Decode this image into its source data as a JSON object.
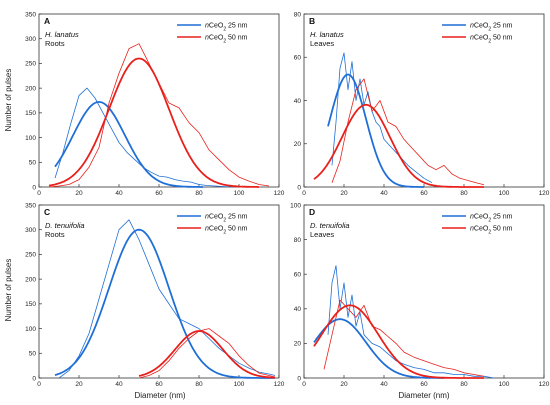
{
  "figure": {
    "ylabel": "Number of pulses",
    "xlabel": "Diameter (nm)"
  },
  "colors": {
    "blue": "#1f6fd6",
    "red": "#e8201c",
    "axis": "#333333"
  },
  "chart_data": [
    {
      "type": "line",
      "panel": "A",
      "species": "H. lanatus",
      "tissue": "Roots",
      "xlim": [
        0,
        120
      ],
      "ylim": [
        0,
        350
      ],
      "xticks": [
        0,
        20,
        40,
        60,
        80,
        100,
        120
      ],
      "yticks": [
        0,
        50,
        100,
        150,
        200,
        250,
        300,
        350
      ],
      "legend_position": "top-right",
      "series": [
        {
          "name": "nCeO2 25 nm",
          "color": "#1f6fd6",
          "histogram": {
            "x": [
              8,
              12,
              16,
              20,
              24,
              28,
              32,
              36,
              40,
              44,
              48,
              52,
              56,
              60,
              64,
              68,
              72,
              76,
              80,
              84,
              88,
              92,
              96
            ],
            "y": [
              18,
              70,
              130,
              185,
              200,
              180,
              150,
              120,
              90,
              70,
              55,
              40,
              30,
              22,
              20,
              15,
              12,
              10,
              5,
              3,
              2,
              1,
              0
            ]
          },
          "fit": {
            "mu": 30,
            "sigma": 13,
            "peak": 172,
            "range": [
              8,
              82
            ]
          }
        },
        {
          "name": "nCeO2 50 nm",
          "color": "#e8201c",
          "histogram": {
            "x": [
              5,
              10,
              15,
              20,
              25,
              30,
              35,
              40,
              45,
              50,
              55,
              60,
              65,
              70,
              75,
              80,
              85,
              90,
              95,
              100,
              105,
              110,
              115
            ],
            "y": [
              0,
              2,
              5,
              15,
              40,
              80,
              170,
              230,
              280,
              290,
              250,
              210,
              170,
              160,
              130,
              110,
              75,
              55,
              35,
              20,
              12,
              5,
              2
            ]
          },
          "fit": {
            "mu": 50,
            "sigma": 15,
            "peak": 260,
            "range": [
              5,
              110
            ]
          }
        }
      ]
    },
    {
      "type": "line",
      "panel": "B",
      "species": "H. lanatus",
      "tissue": "Leaves",
      "xlim": [
        0,
        120
      ],
      "ylim": [
        0,
        80
      ],
      "xticks": [
        0,
        20,
        40,
        60,
        80,
        100,
        120
      ],
      "yticks": [
        0,
        20,
        40,
        60,
        80
      ],
      "legend_position": "top-right",
      "series": [
        {
          "name": "nCeO2 25 nm",
          "color": "#1f6fd6",
          "histogram": {
            "x": [
              14,
              16,
              18,
              20,
              22,
              24,
              26,
              28,
              30,
              32,
              34,
              36,
              38,
              40,
              44,
              48,
              52,
              56,
              60,
              64
            ],
            "y": [
              10,
              30,
              55,
              62,
              45,
              58,
              40,
              50,
              38,
              44,
              35,
              30,
              28,
              22,
              18,
              14,
              10,
              7,
              4,
              2
            ]
          },
          "fit": {
            "mu": 22,
            "sigma": 9,
            "peak": 52,
            "range": [
              12,
              60
            ]
          }
        },
        {
          "name": "nCeO2 50 nm",
          "color": "#e8201c",
          "histogram": {
            "x": [
              14,
              18,
              22,
              26,
              30,
              34,
              38,
              42,
              46,
              50,
              54,
              58,
              62,
              66,
              70,
              74,
              78,
              82,
              86,
              90
            ],
            "y": [
              2,
              12,
              30,
              45,
              50,
              35,
              40,
              30,
              28,
              22,
              18,
              14,
              10,
              8,
              10,
              6,
              4,
              3,
              2,
              1
            ]
          },
          "fit": {
            "mu": 31,
            "sigma": 12,
            "peak": 38,
            "range": [
              5,
              90
            ]
          }
        }
      ]
    },
    {
      "type": "line",
      "panel": "C",
      "species": "D. tenuifolia",
      "tissue": "Roots",
      "xlim": [
        0,
        120
      ],
      "ylim": [
        0,
        350
      ],
      "xticks": [
        0,
        20,
        40,
        60,
        80,
        100,
        120
      ],
      "yticks": [
        0,
        50,
        100,
        150,
        200,
        250,
        300,
        350
      ],
      "legend_position": "top-right",
      "series": [
        {
          "name": "nCeO2 25 nm",
          "color": "#1f6fd6",
          "histogram": {
            "x": [
              10,
              15,
              20,
              25,
              30,
              35,
              40,
              45,
              50,
              55,
              60,
              65,
              70,
              75,
              80,
              85,
              90,
              95,
              100,
              105,
              110,
              115,
              118
            ],
            "y": [
              0,
              15,
              45,
              90,
              160,
              230,
              300,
              320,
              280,
              230,
              180,
              150,
              120,
              110,
              100,
              80,
              60,
              45,
              30,
              20,
              12,
              8,
              5
            ]
          },
          "fit": {
            "mu": 50,
            "sigma": 15,
            "peak": 300,
            "range": [
              8,
              118
            ]
          }
        },
        {
          "name": "nCeO2 50 nm",
          "color": "#e8201c",
          "histogram": {
            "x": [
              50,
              55,
              60,
              65,
              70,
              75,
              80,
              85,
              90,
              95,
              100,
              105,
              110,
              115,
              118
            ],
            "y": [
              0,
              5,
              15,
              35,
              60,
              80,
              95,
              100,
              85,
              70,
              45,
              25,
              10,
              5,
              2
            ]
          },
          "fit": {
            "mu": 80,
            "sigma": 12,
            "peak": 95,
            "range": [
              50,
              118
            ]
          }
        }
      ]
    },
    {
      "type": "line",
      "panel": "D",
      "species": "D. tenuifolia",
      "tissue": "Leaves",
      "xlim": [
        0,
        120
      ],
      "ylim": [
        0,
        100
      ],
      "xticks": [
        0,
        20,
        40,
        60,
        80,
        100,
        120
      ],
      "yticks": [
        0,
        20,
        40,
        60,
        80,
        100
      ],
      "legend_position": "top-right",
      "series": [
        {
          "name": "nCeO2 25 nm",
          "color": "#1f6fd6",
          "histogram": {
            "x": [
              12,
              14,
              16,
              18,
              20,
              22,
              24,
              26,
              28,
              30,
              34,
              38,
              42,
              46,
              50,
              55,
              60,
              65,
              70,
              75,
              80,
              85,
              90,
              95
            ],
            "y": [
              25,
              55,
              65,
              40,
              55,
              35,
              48,
              30,
              38,
              25,
              20,
              18,
              14,
              10,
              8,
              6,
              5,
              3,
              3,
              2,
              2,
              1,
              1,
              0
            ]
          },
          "fit": {
            "mu": 18,
            "sigma": 13,
            "peak": 34,
            "range": [
              5,
              70
            ]
          }
        },
        {
          "name": "nCeO2 50 nm",
          "color": "#e8201c",
          "histogram": {
            "x": [
              10,
              14,
              18,
              22,
              26,
              30,
              34,
              38,
              42,
              46,
              50,
              55,
              60,
              65,
              70,
              75,
              80,
              85,
              90
            ],
            "y": [
              5,
              25,
              45,
              40,
              35,
              42,
              30,
              28,
              24,
              20,
              15,
              12,
              10,
              8,
              6,
              5,
              3,
              2,
              1
            ]
          },
          "fit": {
            "mu": 23,
            "sigma": 14,
            "peak": 42,
            "range": [
              5,
              90
            ]
          }
        }
      ]
    }
  ]
}
